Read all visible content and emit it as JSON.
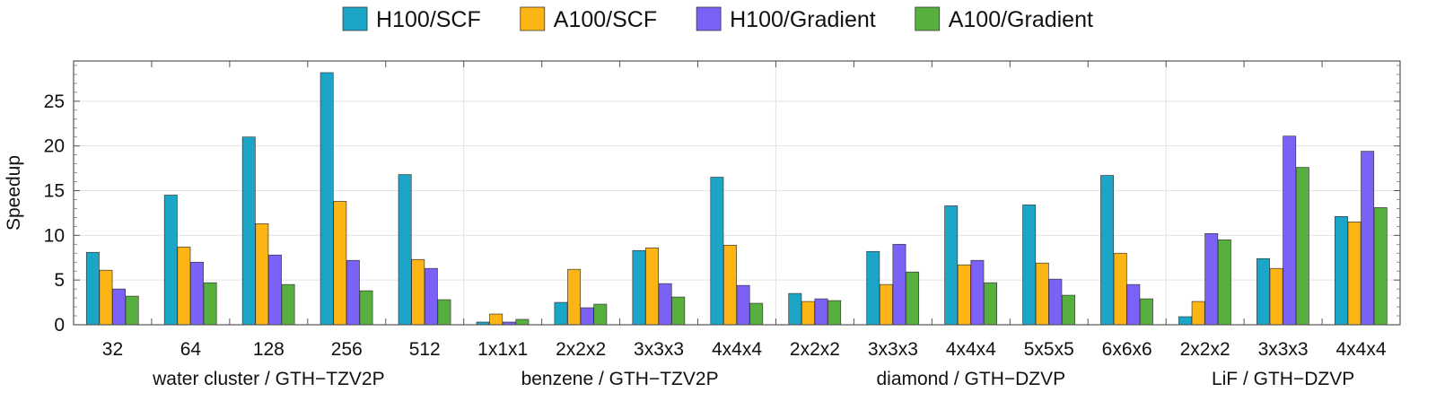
{
  "chart_data": {
    "type": "bar",
    "title": "",
    "xlabel": "",
    "ylabel": "Speedup",
    "ylim": [
      0,
      29.5
    ],
    "yticks": [
      0,
      5,
      10,
      15,
      20,
      25
    ],
    "grid": true,
    "legend_position": "top-center",
    "categories": [
      "32",
      "64",
      "128",
      "256",
      "512",
      "1x1x1",
      "2x2x2",
      "3x3x3",
      "4x4x4",
      "2x2x2",
      "3x3x3",
      "4x4x4",
      "5x5x5",
      "6x6x6",
      "2x2x2",
      "3x3x3",
      "4x4x4"
    ],
    "groups": [
      {
        "label": "water cluster / GTH−TZV2P",
        "start": 0,
        "end": 4
      },
      {
        "label": "benzene / GTH−TZV2P",
        "start": 5,
        "end": 8
      },
      {
        "label": "diamond / GTH−DZVP",
        "start": 9,
        "end": 13
      },
      {
        "label": "LiF / GTH−DZVP",
        "start": 14,
        "end": 16
      }
    ],
    "series": [
      {
        "name": "H100/SCF",
        "color": "#1BA6C8",
        "values": [
          8.1,
          14.5,
          21.0,
          28.2,
          16.8,
          0.3,
          2.5,
          8.3,
          16.5,
          3.5,
          8.2,
          13.3,
          13.4,
          16.7,
          0.9,
          7.4,
          12.1
        ]
      },
      {
        "name": "A100/SCF",
        "color": "#FDB515",
        "values": [
          6.1,
          8.7,
          11.3,
          13.8,
          7.3,
          1.2,
          6.2,
          8.6,
          8.9,
          2.6,
          4.5,
          6.7,
          6.9,
          8.0,
          2.6,
          6.3,
          11.5
        ]
      },
      {
        "name": "H100/Gradient",
        "color": "#7B61F5",
        "values": [
          4.0,
          7.0,
          7.8,
          7.2,
          6.3,
          0.3,
          1.9,
          4.6,
          4.4,
          2.9,
          9.0,
          7.2,
          5.1,
          4.5,
          10.2,
          21.1,
          19.4
        ]
      },
      {
        "name": "A100/Gradient",
        "color": "#57AF3E",
        "values": [
          3.2,
          4.7,
          4.5,
          3.8,
          2.8,
          0.6,
          2.3,
          3.1,
          2.4,
          2.7,
          5.9,
          4.7,
          3.3,
          2.9,
          9.5,
          17.6,
          13.1
        ]
      }
    ]
  }
}
